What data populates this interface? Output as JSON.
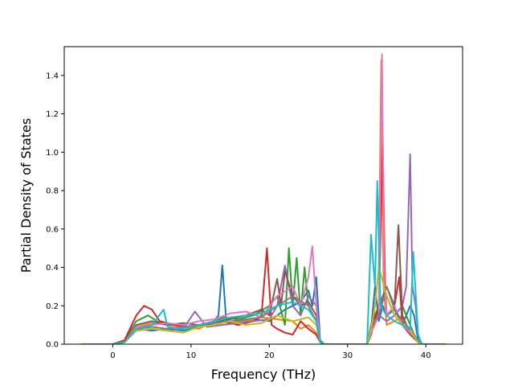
{
  "chart_data": {
    "type": "line",
    "title": "",
    "xlabel": "Frequency (THz)",
    "ylabel": "Partial Density of States",
    "xlim": [
      -6.2,
      44.7
    ],
    "ylim": [
      0,
      1.55
    ],
    "xticks": [
      0,
      10,
      20,
      30,
      40
    ],
    "yticks": [
      0.0,
      0.2,
      0.4,
      0.6,
      0.8,
      1.0,
      1.2,
      1.4
    ],
    "xtick_labels": [
      "0",
      "10",
      "20",
      "30",
      "40"
    ],
    "ytick_labels": [
      "0.0",
      "0.2",
      "0.4",
      "0.6",
      "0.8",
      "1.0",
      "1.2",
      "1.4"
    ],
    "grid": false,
    "legend": "none",
    "colors": [
      "#1f77b4",
      "#ff7f0e",
      "#2ca02c",
      "#d62728",
      "#9467bd",
      "#8c564b",
      "#e377c2",
      "#7f7f7f",
      "#bcbd22",
      "#17becf"
    ],
    "series": [
      {
        "color": "#1f77b4",
        "x": [
          -4,
          0,
          1.5,
          3,
          5,
          7,
          9,
          11,
          12.5,
          13.5,
          14,
          14.5,
          16,
          18,
          20,
          21,
          22,
          23,
          24,
          25,
          25.5,
          26,
          26.5,
          27,
          32.5,
          33,
          33.5,
          34,
          34.5,
          35,
          36,
          37,
          38,
          38.5,
          39,
          39.5,
          42.5
        ],
        "y": [
          0,
          0,
          0.01,
          0.08,
          0.07,
          0.08,
          0.07,
          0.09,
          0.1,
          0.15,
          0.41,
          0.12,
          0.12,
          0.13,
          0.12,
          0.15,
          0.18,
          0.2,
          0.22,
          0.28,
          0.2,
          0.35,
          0.02,
          0,
          0,
          0.08,
          0.3,
          0.12,
          0.2,
          0.15,
          0.18,
          0.1,
          0.2,
          0.15,
          0.02,
          0,
          0
        ]
      },
      {
        "color": "#ff7f0e",
        "x": [
          -4,
          0,
          1.5,
          3,
          5,
          7,
          9,
          11,
          13,
          15,
          17,
          19,
          21,
          23,
          24,
          25,
          26,
          26.5,
          27,
          32.5,
          33,
          33.5,
          34,
          34.3,
          34.6,
          35,
          36,
          37,
          38,
          38.5,
          39,
          39.5,
          42.5
        ],
        "y": [
          0,
          0,
          0.01,
          0.09,
          0.11,
          0.1,
          0.09,
          0.08,
          0.12,
          0.11,
          0.12,
          0.14,
          0.13,
          0.12,
          0.08,
          0.1,
          0.06,
          0.01,
          0,
          0,
          0.05,
          0.2,
          0.4,
          1.48,
          0.3,
          0.1,
          0.12,
          0.15,
          0.06,
          0.05,
          0.01,
          0,
          0
        ]
      },
      {
        "color": "#2ca02c",
        "x": [
          -4,
          0,
          1.5,
          3,
          4.5,
          6,
          8,
          10,
          12,
          14,
          16,
          18,
          20,
          21,
          22,
          22.5,
          23,
          23.5,
          24,
          24.5,
          25,
          26,
          26.5,
          27,
          32.5,
          33,
          34,
          35,
          36,
          37,
          38,
          38.5,
          39,
          39.5,
          42.5
        ],
        "y": [
          0,
          0,
          0.02,
          0.12,
          0.15,
          0.11,
          0.1,
          0.09,
          0.1,
          0.14,
          0.13,
          0.15,
          0.2,
          0.25,
          0.1,
          0.5,
          0.2,
          0.45,
          0.15,
          0.4,
          0.2,
          0.12,
          0.01,
          0,
          0,
          0.05,
          0.2,
          0.25,
          0.15,
          0.2,
          0.1,
          0.05,
          0.01,
          0,
          0
        ]
      },
      {
        "color": "#d62728",
        "x": [
          -4,
          0,
          1.5,
          3,
          4,
          5,
          6,
          8,
          10,
          12,
          14,
          16,
          18,
          19,
          19.7,
          20.3,
          21,
          22,
          23,
          24,
          25,
          26,
          26.5,
          27,
          32.5,
          33,
          34,
          34.5,
          34.8,
          35,
          36,
          36.6,
          37,
          38,
          38.5,
          39,
          39.5,
          42.5
        ],
        "y": [
          0,
          0,
          0.02,
          0.15,
          0.2,
          0.18,
          0.12,
          0.1,
          0.09,
          0.1,
          0.12,
          0.1,
          0.12,
          0.15,
          0.5,
          0.1,
          0.08,
          0.06,
          0.05,
          0.12,
          0.08,
          0.05,
          0.01,
          0,
          0,
          0.05,
          0.2,
          1.04,
          0.3,
          0.15,
          0.2,
          0.35,
          0.1,
          0.05,
          0.05,
          0.01,
          0,
          0
        ]
      },
      {
        "color": "#9467bd",
        "x": [
          -4,
          0,
          1.5,
          3,
          5,
          7,
          9,
          10.5,
          12,
          14,
          16,
          18,
          20,
          21,
          22,
          23,
          24,
          25,
          26,
          26.5,
          27,
          32.5,
          33,
          34,
          35,
          36,
          37,
          37.5,
          38,
          38.3,
          38.7,
          39,
          39.5,
          42.5
        ],
        "y": [
          0,
          0,
          0.01,
          0.07,
          0.08,
          0.07,
          0.08,
          0.17,
          0.09,
          0.1,
          0.11,
          0.12,
          0.13,
          0.2,
          0.41,
          0.2,
          0.15,
          0.25,
          0.2,
          0.01,
          0,
          0,
          0.06,
          0.15,
          0.12,
          0.15,
          0.2,
          0.3,
          0.99,
          0.3,
          0.2,
          0.05,
          0,
          0
        ]
      },
      {
        "color": "#8c564b",
        "x": [
          -4,
          0,
          1.5,
          3,
          5,
          7,
          9,
          11,
          13,
          15,
          17,
          19,
          20,
          21,
          21.5,
          22,
          23,
          24,
          25,
          26,
          26.5,
          27,
          32.5,
          33,
          34,
          35,
          36,
          36.5,
          37,
          37.5,
          38,
          38.5,
          39,
          39.5,
          42.5
        ],
        "y": [
          0,
          0,
          0.01,
          0.1,
          0.12,
          0.1,
          0.11,
          0.1,
          0.12,
          0.13,
          0.15,
          0.18,
          0.15,
          0.34,
          0.2,
          0.38,
          0.25,
          0.2,
          0.22,
          0.15,
          0.01,
          0,
          0,
          0.1,
          0.2,
          0.3,
          0.2,
          0.62,
          0.15,
          0.1,
          0.05,
          0.03,
          0.01,
          0,
          0
        ]
      },
      {
        "color": "#e377c2",
        "x": [
          -4,
          0,
          1.5,
          3,
          5,
          7,
          9,
          11,
          13,
          15,
          17,
          19,
          21,
          23,
          24,
          25,
          25.5,
          26,
          26.5,
          27,
          32.5,
          33,
          34,
          34.4,
          34.7,
          35,
          36,
          37,
          38,
          38.5,
          39,
          39.5,
          42.5
        ],
        "y": [
          0,
          0,
          0.01,
          0.09,
          0.1,
          0.11,
          0.1,
          0.12,
          0.13,
          0.16,
          0.17,
          0.14,
          0.25,
          0.3,
          0.2,
          0.35,
          0.51,
          0.2,
          0.01,
          0,
          0,
          0.06,
          0.15,
          1.51,
          0.3,
          0.15,
          0.2,
          0.1,
          0.06,
          0.04,
          0.01,
          0,
          0
        ]
      },
      {
        "color": "#7f7f7f",
        "x": [
          -4,
          0,
          1.5,
          3,
          5,
          7,
          9,
          11,
          13,
          15,
          17,
          19,
          21,
          23,
          25,
          26,
          26.5,
          27,
          32.5,
          33,
          34,
          35,
          36,
          37,
          38,
          38.5,
          39,
          39.5,
          42.5
        ],
        "y": [
          0,
          0,
          0.01,
          0.08,
          0.09,
          0.08,
          0.09,
          0.1,
          0.11,
          0.12,
          0.13,
          0.14,
          0.2,
          0.25,
          0.2,
          0.12,
          0.01,
          0,
          0,
          0.1,
          0.15,
          0.3,
          0.18,
          0.12,
          0.08,
          0.05,
          0.01,
          0,
          0
        ]
      },
      {
        "color": "#bcbd22",
        "x": [
          -4,
          0,
          1.5,
          3,
          5,
          7,
          9,
          11,
          13,
          15,
          17,
          19,
          21,
          23,
          25,
          26,
          26.5,
          27,
          32.5,
          33,
          33.5,
          34,
          35,
          36,
          37,
          38,
          38.5,
          39,
          39.5,
          42.5
        ],
        "y": [
          0,
          0,
          0.01,
          0.07,
          0.08,
          0.07,
          0.06,
          0.09,
          0.1,
          0.12,
          0.1,
          0.11,
          0.15,
          0.12,
          0.14,
          0.1,
          0.01,
          0,
          0,
          0.08,
          0.2,
          0.4,
          0.25,
          0.15,
          0.1,
          0.08,
          0.04,
          0.01,
          0,
          0
        ]
      },
      {
        "color": "#17becf",
        "x": [
          -4,
          0,
          1.5,
          3,
          5,
          6.5,
          7,
          9,
          11,
          13,
          15,
          17,
          19,
          21,
          23,
          25,
          26,
          26.5,
          27,
          32.5,
          33,
          33.5,
          33.8,
          34.2,
          35,
          36,
          37,
          38,
          38.4,
          38.8,
          39,
          39.5,
          42.5
        ],
        "y": [
          0,
          0,
          0.01,
          0.08,
          0.1,
          0.18,
          0.09,
          0.08,
          0.1,
          0.12,
          0.14,
          0.15,
          0.16,
          0.2,
          0.22,
          0.18,
          0.12,
          0.01,
          0,
          0,
          0.57,
          0.3,
          0.85,
          0.2,
          0.15,
          0.12,
          0.1,
          0.08,
          0.48,
          0.2,
          0.05,
          0,
          0
        ]
      }
    ]
  }
}
